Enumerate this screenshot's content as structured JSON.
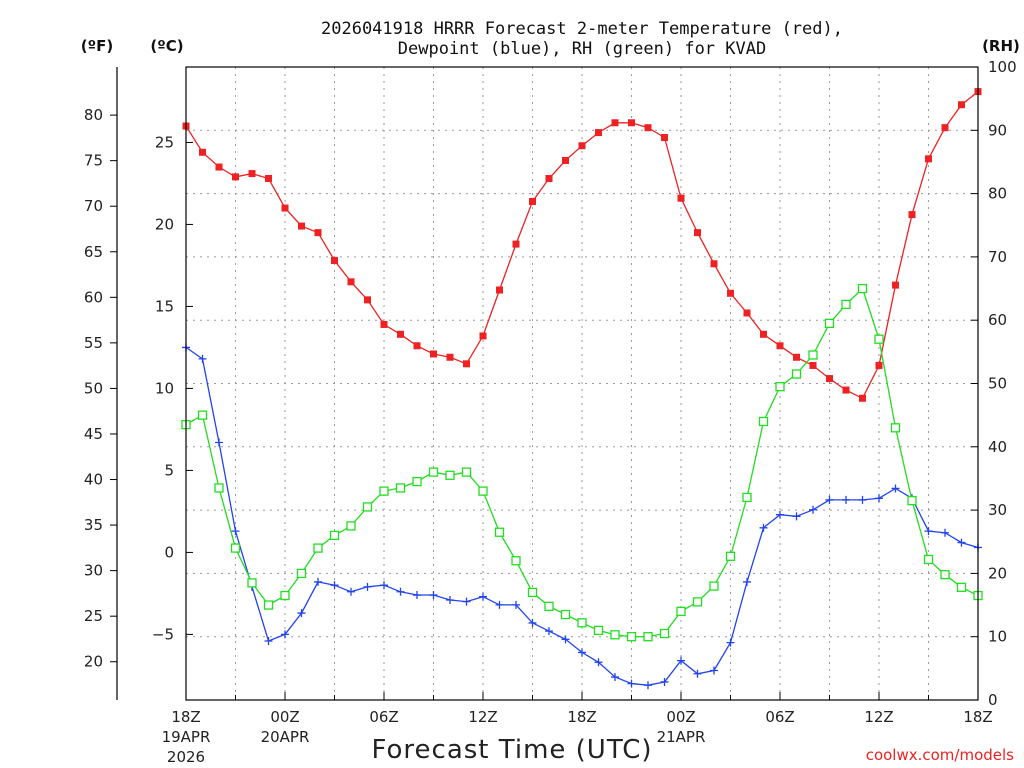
{
  "chart_data": {
    "type": "line",
    "title_line1": "2026041918 HRRR Forecast 2-meter Temperature (red),",
    "title_line2": "Dewpoint (blue), RH (green) for KVAD",
    "xlabel": "Forecast Time (UTC)",
    "credit": "coolwx.com/models",
    "units": {
      "fahrenheit": "(ºF)",
      "celsius": "(ºC)",
      "rh": "(RH)"
    },
    "x_range": [
      0,
      48
    ],
    "celsius_range": [
      -9.0,
      29.6
    ],
    "rh_range": [
      0,
      100
    ],
    "fahrenheit_ticks": [
      "80",
      "75",
      "70",
      "65",
      "60",
      "55",
      "50",
      "45",
      "40",
      "35",
      "30",
      "25",
      "20"
    ],
    "fahrenheit_values": [
      80,
      75,
      70,
      65,
      60,
      55,
      50,
      45,
      40,
      35,
      30,
      25,
      20
    ],
    "celsius_ticks": [
      "25",
      "20",
      "15",
      "10",
      "5",
      "0",
      "−5"
    ],
    "celsius_values": [
      25,
      20,
      15,
      10,
      5,
      0,
      -5
    ],
    "rh_ticks": [
      "100",
      "90",
      "80",
      "70",
      "60",
      "50",
      "40",
      "30",
      "20",
      "10",
      "0"
    ],
    "rh_values": [
      100,
      90,
      80,
      70,
      60,
      50,
      40,
      30,
      20,
      10,
      0
    ],
    "x_ticks": [
      {
        "hour": 0,
        "label": "18Z",
        "sub1": "19APR",
        "sub2": "2026"
      },
      {
        "hour": 6,
        "label": "00Z",
        "sub1": "20APR",
        "sub2": ""
      },
      {
        "hour": 12,
        "label": "06Z",
        "sub1": "",
        "sub2": ""
      },
      {
        "hour": 18,
        "label": "12Z",
        "sub1": "",
        "sub2": ""
      },
      {
        "hour": 24,
        "label": "18Z",
        "sub1": "",
        "sub2": ""
      },
      {
        "hour": 30,
        "label": "00Z",
        "sub1": "21APR",
        "sub2": ""
      },
      {
        "hour": 36,
        "label": "06Z",
        "sub1": "",
        "sub2": ""
      },
      {
        "hour": 42,
        "label": "12Z",
        "sub1": "",
        "sub2": ""
      },
      {
        "hour": 48,
        "label": "18Z",
        "sub1": "",
        "sub2": ""
      }
    ],
    "series": [
      {
        "name": "2-meter Temperature",
        "axis": "celsius",
        "color": "#ee2222",
        "marker": "filled-square",
        "values": [
          26.0,
          24.4,
          23.5,
          22.9,
          23.1,
          22.8,
          21.0,
          19.9,
          19.5,
          17.8,
          16.5,
          15.4,
          13.9,
          13.3,
          12.6,
          12.1,
          11.9,
          11.5,
          13.2,
          16.0,
          18.8,
          21.4,
          22.8,
          23.9,
          24.8,
          25.6,
          26.2,
          26.2,
          25.9,
          25.3,
          21.6,
          19.5,
          17.6,
          15.8,
          14.6,
          13.3,
          12.6,
          11.9,
          11.4,
          10.6,
          9.9,
          9.4,
          11.4,
          16.3,
          20.6,
          24.0,
          25.9,
          27.3,
          28.1
        ]
      },
      {
        "name": "Dewpoint",
        "axis": "celsius",
        "color": "#2244ee",
        "marker": "plus",
        "values": [
          12.5,
          11.8,
          6.7,
          1.3,
          -2.1,
          -5.4,
          -5.0,
          -3.7,
          -1.8,
          -2.0,
          -2.4,
          -2.1,
          -2.0,
          -2.4,
          -2.6,
          -2.6,
          -2.9,
          -3.0,
          -2.7,
          -3.2,
          -3.2,
          -4.3,
          -4.8,
          -5.3,
          -6.1,
          -6.7,
          -7.6,
          -8.0,
          -8.1,
          -7.9,
          -6.6,
          -7.4,
          -7.2,
          -5.5,
          -1.8,
          1.5,
          2.3,
          2.2,
          2.6,
          3.2,
          3.2,
          3.2,
          3.3,
          3.9,
          3.3,
          1.3,
          1.2,
          0.6,
          0.3
        ]
      },
      {
        "name": "RH",
        "axis": "rh",
        "color": "#22dd22",
        "marker": "open-square",
        "values": [
          43.5,
          45.0,
          33.5,
          24.0,
          18.5,
          15.0,
          16.5,
          20.0,
          24.0,
          26.0,
          27.5,
          30.5,
          33.0,
          33.5,
          34.5,
          36.0,
          35.5,
          36.0,
          33.0,
          26.5,
          22.0,
          17.0,
          14.8,
          13.5,
          12.2,
          11.0,
          10.3,
          10.0,
          10.0,
          10.5,
          14.0,
          15.5,
          18.0,
          22.7,
          32.0,
          44.0,
          49.5,
          51.5,
          54.5,
          59.5,
          62.5,
          65.0,
          57.0,
          43.0,
          31.5,
          22.2,
          19.8,
          17.8,
          16.5
        ]
      }
    ]
  }
}
